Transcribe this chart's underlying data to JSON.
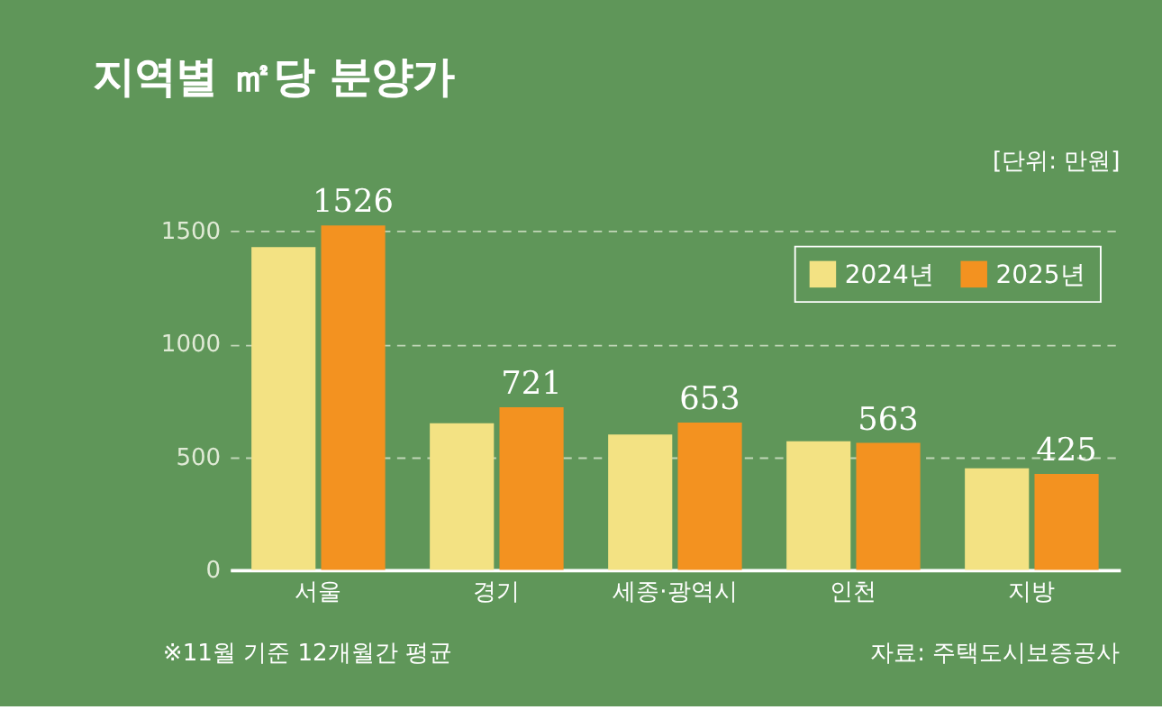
{
  "chart_data": {
    "type": "bar",
    "title": "지역별 ㎡당 분양가",
    "categories": [
      "서울",
      "경기",
      "세종·광역시",
      "인천",
      "지방"
    ],
    "series": [
      {
        "name": "2024년",
        "color": "#f3e283",
        "values": [
          1430,
          650,
          600,
          570,
          450
        ]
      },
      {
        "name": "2025년",
        "color": "#f39220",
        "values": [
          1526,
          721,
          653,
          563,
          425
        ],
        "value_labels": [
          "1526",
          "721",
          "653",
          "563",
          "425"
        ]
      }
    ],
    "ylim": [
      0,
      1526
    ],
    "yticks": [
      0,
      500,
      1000,
      1500
    ],
    "grid": "y",
    "legend": "top right",
    "annotations": [
      "[단위: 만원]",
      "※11월 기준 12개월간 평균",
      "자료: 주택도시보증공사"
    ]
  }
}
